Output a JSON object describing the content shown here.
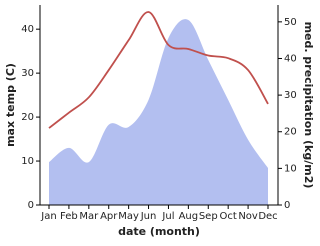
{
  "chart_data": {
    "type": "line-area",
    "categories": [
      "Jan",
      "Feb",
      "Mar",
      "Apr",
      "May",
      "Jun",
      "Jul",
      "Aug",
      "Sep",
      "Oct",
      "Nov",
      "Dec"
    ],
    "series": [
      {
        "name": "max temp (C)",
        "color": "#c0504d",
        "kind": "line",
        "axis": "y",
        "values": [
          17.5,
          21,
          24.5,
          30.7,
          37.5,
          43.9,
          36.4,
          35.5,
          34,
          33.4,
          30.7,
          23
        ]
      },
      {
        "name": "med. precipitation (kg/m2)",
        "color": "#b3bff0",
        "kind": "area",
        "axis": "y2",
        "values": [
          11.7,
          15.6,
          11.7,
          21.9,
          21.3,
          28.7,
          45.6,
          50.5,
          39.6,
          28.7,
          17.8,
          10.1
        ]
      }
    ],
    "xlabel": "date (month)",
    "ylabel": "max temp (C)",
    "y2label": "med. precipitation (kg/m2)",
    "ylim": [
      0,
      45.5
    ],
    "yticks": [
      0,
      10,
      20,
      30,
      40
    ],
    "y2lim": [
      0,
      54.6
    ],
    "y2ticks": [
      0,
      10,
      20,
      30,
      40,
      50
    ]
  }
}
